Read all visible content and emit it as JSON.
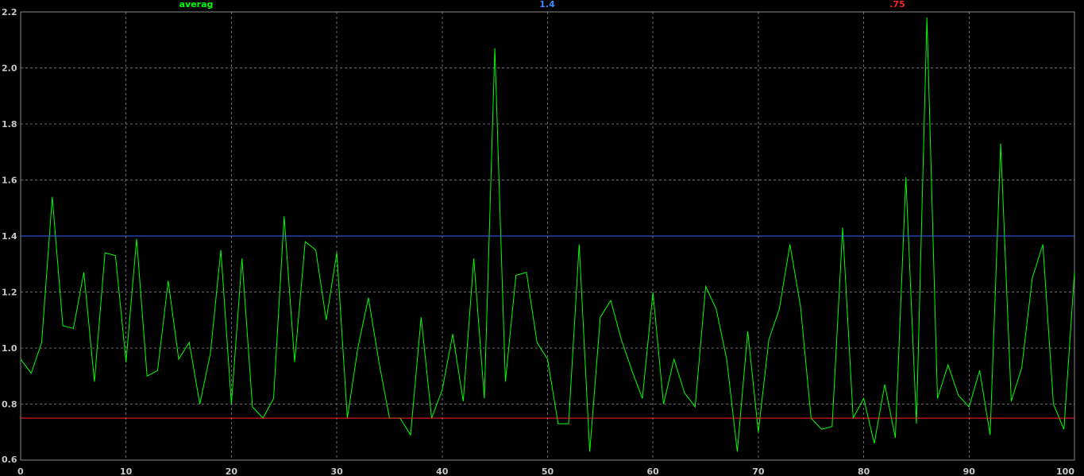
{
  "chart_data": {
    "type": "line",
    "title": "",
    "xlabel": "",
    "ylabel": "",
    "xlim": [
      0,
      100
    ],
    "ylim": [
      0.6,
      2.2
    ],
    "x_ticks": [
      "0",
      "10",
      "20",
      "30",
      "40",
      "50",
      "60",
      "70",
      "80",
      "90",
      "100"
    ],
    "y_ticks": [
      "0.6",
      "0.8",
      "1.0",
      "1.2",
      "1.4",
      "1.6",
      "1.8",
      "2.0",
      "2.2"
    ],
    "grid": true,
    "legend_position": "top",
    "series": [
      {
        "name": "averag",
        "color": "#00ff00",
        "x": [
          0,
          1,
          2,
          3,
          4,
          5,
          6,
          7,
          8,
          9,
          10,
          11,
          12,
          13,
          14,
          15,
          16,
          17,
          18,
          19,
          20,
          21,
          22,
          23,
          24,
          25,
          26,
          27,
          28,
          29,
          30,
          31,
          32,
          33,
          34,
          35,
          36,
          37,
          38,
          39,
          40,
          41,
          42,
          43,
          44,
          45,
          46,
          47,
          48,
          49,
          50,
          51,
          52,
          53,
          54,
          55,
          56,
          57,
          58,
          59,
          60,
          61,
          62,
          63,
          64,
          65,
          66,
          67,
          68,
          69,
          70,
          71,
          72,
          73,
          74,
          75,
          76,
          77,
          78,
          79,
          80,
          81,
          82,
          83,
          84,
          85,
          86,
          87,
          88,
          89,
          90,
          91,
          92,
          93,
          94,
          95,
          96,
          97,
          98,
          99,
          100
        ],
        "values": [
          0.96,
          0.91,
          1.02,
          1.54,
          1.08,
          1.07,
          1.27,
          0.88,
          1.34,
          1.33,
          0.95,
          1.39,
          0.9,
          0.92,
          1.24,
          0.96,
          1.02,
          0.8,
          0.98,
          1.35,
          0.8,
          1.32,
          0.79,
          0.75,
          0.82,
          1.47,
          0.95,
          1.38,
          1.35,
          1.1,
          1.34,
          0.75,
          1.0,
          1.18,
          0.95,
          0.75,
          0.75,
          0.69,
          1.11,
          0.75,
          0.85,
          1.05,
          0.81,
          1.32,
          0.82,
          2.07,
          0.88,
          1.26,
          1.27,
          1.02,
          0.96,
          0.73,
          0.73,
          1.37,
          0.63,
          1.11,
          1.17,
          1.03,
          0.92,
          0.82,
          1.2,
          0.8,
          0.96,
          0.84,
          0.79,
          1.22,
          1.14,
          0.96,
          0.63,
          1.06,
          0.7,
          1.03,
          1.14,
          1.37,
          1.15,
          0.75,
          0.71,
          0.72,
          1.43,
          0.75,
          0.82,
          0.66,
          0.87,
          0.68,
          1.61,
          0.73,
          2.18,
          0.82,
          0.94,
          0.83,
          0.79,
          0.92,
          0.69,
          1.73,
          0.81,
          0.93,
          1.25,
          1.37,
          0.8,
          0.71,
          1.27
        ]
      },
      {
        "name": "1.4",
        "color": "#3a5fff",
        "x": [
          0,
          100
        ],
        "values": [
          1.4,
          1.4
        ]
      },
      {
        "name": ".75",
        "color": "#ff2020",
        "x": [
          0,
          100
        ],
        "values": [
          0.75,
          0.75
        ]
      }
    ]
  }
}
